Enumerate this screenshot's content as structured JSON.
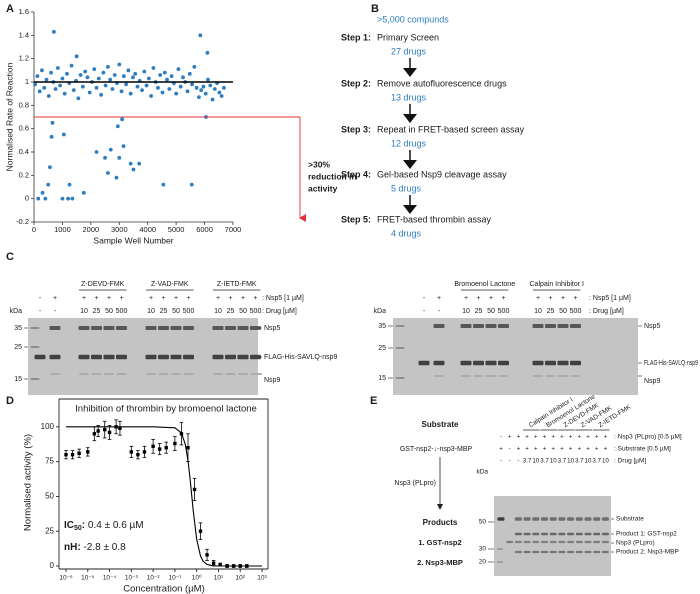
{
  "panel_labels": [
    "A",
    "B",
    "C",
    "D",
    "E"
  ],
  "chart_data": [
    {
      "type": "scatter",
      "y_label": "Normalised Rate of Reaction",
      "x_label": "Sample Well Number",
      "xlim": [
        0,
        7000
      ],
      "xticks": [
        0,
        1000,
        2000,
        3000,
        4000,
        5000,
        6000,
        7000
      ],
      "ylim": [
        -0.2,
        1.6
      ],
      "yticks": [
        -0.2,
        0,
        0.2,
        0.4,
        0.6,
        0.8,
        1,
        1.2,
        1.4,
        1.6
      ],
      "color": "#2e7dc0",
      "x": [
        40,
        120,
        200,
        280,
        360,
        440,
        520,
        600,
        680,
        760,
        840,
        920,
        1000,
        1080,
        1160,
        1240,
        1320,
        1400,
        1480,
        1560,
        1640,
        1720,
        1800,
        1880,
        1960,
        2040,
        2120,
        2200,
        2280,
        2360,
        2440,
        2520,
        2600,
        2680,
        2760,
        2840,
        2920,
        3000,
        3080,
        3160,
        3240,
        3320,
        3400,
        3480,
        3560,
        3640,
        3720,
        3800,
        3880,
        3960,
        4040,
        4120,
        4200,
        4280,
        4360,
        4440,
        4520,
        4600,
        4680,
        4760,
        4840,
        4920,
        5000,
        5080,
        5160,
        5240,
        5320,
        5400,
        5480,
        5560,
        5640,
        5720,
        5800,
        5880,
        5960,
        6040,
        6120,
        6200,
        6280,
        6360,
        6440,
        6520,
        6600,
        6680,
        150,
        300,
        400,
        500,
        560,
        620,
        650,
        700,
        1000,
        1050,
        1200,
        1250,
        1350,
        1500,
        1750,
        2200,
        2500,
        2600,
        2700,
        2900,
        2950,
        3000,
        3100,
        3150,
        3400,
        3500,
        3700,
        4550,
        5550,
        5850,
        6050,
        6100
      ],
      "y": [
        0.98,
        1.05,
        0.92,
        1.1,
        0.95,
        1.02,
        0.88,
        1.08,
        1.0,
        0.94,
        1.12,
        0.97,
        1.03,
        0.9,
        1.07,
        0.99,
        1.14,
        0.93,
        1.01,
        0.86,
        1.06,
        0.96,
        1.09,
        1.04,
        0.91,
        1.0,
        1.11,
        0.95,
        1.03,
        0.89,
        1.08,
        0.97,
        1.13,
        1.02,
        0.94,
        1.06,
        0.99,
        1.15,
        0.92,
        1.05,
        0.98,
        1.1,
        0.9,
        1.04,
        1.07,
        0.96,
        1.01,
        0.93,
        1.09,
        0.97,
        1.03,
        0.88,
        1.12,
        1.0,
        0.95,
        1.06,
        0.91,
        1.08,
        1.02,
        0.94,
        1.05,
        0.99,
        0.9,
        1.11,
        0.96,
        1.04,
        1.0,
        0.92,
        1.07,
        0.98,
        1.13,
        0.95,
        0.87,
        0.93,
        0.96,
        0.9,
        1.02,
        0.97,
        0.85,
        0.94,
        0.99,
        0.91,
        0.88,
        0.95,
        0.0,
        0.05,
        0.0,
        0.12,
        0.27,
        0.53,
        0.65,
        1.43,
        0.0,
        0.55,
        0.0,
        0.12,
        0.0,
        1.22,
        0.05,
        0.4,
        0.35,
        0.22,
        0.42,
        0.18,
        0.62,
        0.35,
        0.68,
        0.45,
        0.3,
        0.25,
        0.3,
        0.12,
        0.12,
        1.4,
        0.7,
        1.25
      ],
      "reference_lines": [
        {
          "value": 1,
          "color": "#000000"
        },
        {
          "value": 0.7,
          "color": "#e0303a"
        }
      ],
      "annotation": [
        ">30%",
        "reduction in",
        "activity"
      ],
      "annotation_color": "#e0303a"
    },
    {
      "type": "line",
      "title": "Inhibition of thrombin by bromoenol lactone",
      "y_label": "Normalised activity (%)",
      "x_label": "Concentration (µM)",
      "log_x": true,
      "xlim": [
        1e-06,
        1000
      ],
      "xticks": [
        {
          "value": 1e-06,
          "label": "10⁻⁶"
        },
        {
          "value": 1e-05,
          "label": "10⁻⁵"
        },
        {
          "value": 0.0001,
          "label": "10⁻⁴"
        },
        {
          "value": 0.001,
          "label": "10⁻³"
        },
        {
          "value": 0.01,
          "label": "10⁻²"
        },
        {
          "value": 0.1,
          "label": "10⁻¹"
        },
        {
          "value": 1,
          "label": "10⁰"
        },
        {
          "value": 10,
          "label": "10¹"
        },
        {
          "value": 100,
          "label": "10²"
        },
        {
          "value": 1000,
          "label": "10³"
        }
      ],
      "ylim": [
        0,
        120
      ],
      "yticks": [
        0,
        25,
        50,
        75,
        100
      ],
      "color": "#000000",
      "x": [
        1e-06,
        2e-06,
        4e-06,
        1e-05,
        2e-05,
        3e-05,
        6e-05,
        0.0001,
        0.0002,
        0.0003,
        0.001,
        0.002,
        0.004,
        0.01,
        0.02,
        0.04,
        0.1,
        0.2,
        0.4,
        0.8,
        1.5,
        3,
        6,
        12,
        25,
        50,
        100,
        200
      ],
      "values": [
        80,
        80,
        81,
        82,
        95,
        97,
        98,
        96,
        100,
        99,
        82,
        80,
        82,
        86,
        84,
        85,
        88,
        95,
        85,
        55,
        25,
        8,
        2,
        1,
        0,
        0,
        0,
        0
      ],
      "errors": [
        3,
        3,
        3,
        3,
        5,
        4,
        6,
        5,
        5,
        5,
        4,
        3,
        4,
        5,
        4,
        4,
        5,
        8,
        10,
        8,
        6,
        4,
        2,
        1,
        1,
        1,
        1,
        1
      ],
      "fit_x": [
        1e-06,
        0.0001,
        0.01,
        0.1,
        0.2,
        0.3,
        0.4,
        0.5,
        0.7,
        1,
        1.5,
        2,
        3,
        5,
        10,
        100,
        1000
      ],
      "fit_values": [
        100,
        100,
        100,
        99.3,
        95.6,
        87.4,
        75.7,
        62.5,
        39.4,
        19.3,
        7.1,
        3.3,
        1.1,
        0.3,
        0,
        0,
        0
      ],
      "annotations": [
        "IC",
        "50",
        ":",
        " 0.4 ± 0.6 µM",
        "nH:",
        " -2.8 ± 0.8"
      ]
    }
  ],
  "flowchart": {
    "start": ">5,000 compunds",
    "steps": [
      {
        "label": "Step 1:",
        "text": "Primary Screen",
        "result": "27 drugs"
      },
      {
        "label": "Step 2:",
        "text": "Remove autofluorescence drugs",
        "result": "13 drugs"
      },
      {
        "label": "Step 3:",
        "text": "Repeat in FRET-based screen assay",
        "result": "12 drugs"
      },
      {
        "label": "Step 4:",
        "text": "Gel-based Nsp9 cleavage assay",
        "result": "5 drugs"
      },
      {
        "label": "Step 5:",
        "text": "FRET-based thrombin assay",
        "result": "4 drugs"
      }
    ]
  },
  "gel_c": {
    "left": {
      "groups": [
        "Z-DEVD-FMK",
        "Z-VAD-FMK",
        "Z-IETD-FMK"
      ],
      "kda": "kDa",
      "markers": [
        "35",
        "25",
        "15"
      ],
      "row_labels": [
        ": Nsp5 [1 µM]",
        ": Drug [µM]"
      ],
      "rows": [
        [
          "-",
          "+",
          "+",
          "+",
          "+",
          "+",
          "+",
          "+",
          "+",
          "+",
          "+",
          "+",
          "+",
          "+"
        ],
        [
          "-",
          "-",
          "10",
          "25",
          "50",
          "500",
          "10",
          "25",
          "50",
          "500",
          "10",
          "25",
          "50",
          "500"
        ]
      ],
      "bands": [
        "Nsp5",
        "FLAG-His-SAVLQ-nsp9",
        "Nsp9"
      ]
    },
    "right": {
      "groups": [
        "Bromoenol Lactone",
        "Calpain Inhibitor I"
      ],
      "kda": "kDa",
      "markers": [
        "35",
        "25",
        "15"
      ],
      "row_labels": [
        ": Nsp5 [1 µM]",
        ": Drug [µM]"
      ],
      "rows": [
        [
          "-",
          "+",
          "+",
          "+",
          "+",
          "+",
          "+",
          "+",
          "+",
          "+"
        ],
        [
          "-",
          "-",
          "10",
          "25",
          "50",
          "500",
          "10",
          "25",
          "50",
          "500"
        ]
      ],
      "bands": [
        "Nsp5",
        "FLAG-His-SAVLQ-nsp9",
        "Nsp9"
      ]
    }
  },
  "panel_e": {
    "substrate_title": "Substrate",
    "substrate": "GST-nsp2-↓-nsp3-MBP",
    "enzyme": "Nsp3 (PLpro)",
    "products_title": "Products",
    "products": [
      "1. GST-nsp2",
      "2. Nsp3-MBP"
    ],
    "gel": {
      "groups": [
        "Calpain Inhibitor I",
        "Bromoenol Lactone",
        "Z-DEVD-FMK",
        "Z-VAD-FMK",
        "Z-IETD-FMK"
      ],
      "kda": "kDa",
      "markers": [
        "50",
        "30",
        "20"
      ],
      "row_labels": [
        ": Nsp3 (PLpro) [0.5 µM]",
        ": Substrate [0.5 µM]",
        ": Drug [µM]"
      ],
      "rows": [
        [
          "-",
          "+",
          "+",
          "+",
          "+",
          "+",
          "+",
          "+",
          "+",
          "+",
          "+",
          "+",
          "+"
        ],
        [
          "+",
          "-",
          "+",
          "+",
          "+",
          "+",
          "+",
          "+",
          "+",
          "+",
          "+",
          "+",
          "+"
        ],
        [
          "-",
          "-",
          "-",
          "3.7",
          "10",
          "3.7",
          "10",
          "3.7",
          "10",
          "3.7",
          "10",
          "3.7",
          "10"
        ]
      ],
      "bands": [
        "Substrate",
        "Product 1: GST-nsp2",
        "Nsp3 (PLpro)",
        "Product 2: Nsp3-MBP"
      ]
    }
  }
}
